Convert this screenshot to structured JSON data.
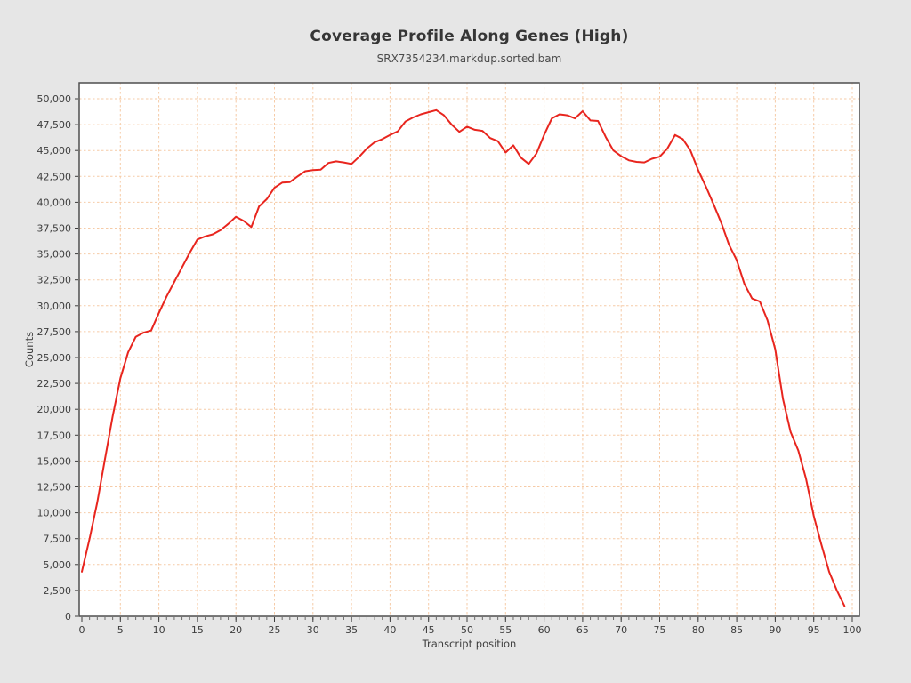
{
  "header": {
    "title": "Coverage Profile Along Genes (High)",
    "subtitle": "SRX7354234.markdup.sorted.bam"
  },
  "chart_data": {
    "type": "line",
    "title": "Coverage Profile Along Genes (High)",
    "subtitle": "SRX7354234.markdup.sorted.bam",
    "xlabel": "Transcript position",
    "ylabel": "Counts",
    "xlim": [
      -0.35,
      100.9
    ],
    "ylim": [
      0,
      51500
    ],
    "grid": true,
    "legend_position": "none",
    "x_ticks": [
      0,
      5,
      10,
      15,
      20,
      25,
      30,
      35,
      40,
      45,
      50,
      55,
      60,
      65,
      70,
      75,
      80,
      85,
      90,
      95,
      100
    ],
    "x_tick_labels": [
      "0",
      "5",
      "10",
      "15",
      "20",
      "25",
      "30",
      "35",
      "40",
      "45",
      "50",
      "55",
      "60",
      "65",
      "70",
      "75",
      "80",
      "85",
      "90",
      "95",
      "100"
    ],
    "x_minor_tick_step": 1,
    "y_ticks": [
      0,
      2500,
      5000,
      7500,
      10000,
      12500,
      15000,
      17500,
      20000,
      22500,
      25000,
      27500,
      30000,
      32500,
      35000,
      37500,
      40000,
      42500,
      45000,
      47500,
      50000
    ],
    "y_tick_labels": [
      "0",
      "2,500",
      "5,000",
      "7,500",
      "10,000",
      "12,500",
      "15,000",
      "17,500",
      "20,000",
      "22,500",
      "25,000",
      "27,500",
      "30,000",
      "32,500",
      "35,000",
      "37,500",
      "40,000",
      "42,500",
      "45,000",
      "47,500",
      "50,000"
    ],
    "series": [
      {
        "name": "SRX7354234.markdup.sorted.bam",
        "x_start": 0,
        "x_step": 1,
        "values": [
          4300,
          7500,
          11000,
          15200,
          19300,
          23000,
          25500,
          27000,
          27400,
          27600,
          29300,
          30900,
          32300,
          33700,
          35100,
          36400,
          36700,
          36900,
          37300,
          37900,
          38600,
          38200,
          37600,
          39600,
          40300,
          41400,
          41900,
          41950,
          42500,
          43000,
          43100,
          43150,
          43800,
          43950,
          43850,
          43700,
          44400,
          45200,
          45800,
          46100,
          46500,
          46850,
          47800,
          48200,
          48500,
          48700,
          48900,
          48400,
          47500,
          46800,
          47300,
          47000,
          46900,
          46200,
          45900,
          44800,
          45500,
          44300,
          43700,
          44700,
          46500,
          48100,
          48500,
          48400,
          48100,
          48800,
          47900,
          47850,
          46300,
          45000,
          44450,
          44050,
          43900,
          43850,
          44200,
          44400,
          45200,
          46500,
          46100,
          45000,
          43100,
          41500,
          39800,
          38000,
          35900,
          34400,
          32100,
          30700,
          30400,
          28600,
          25800,
          21000,
          17800,
          16000,
          13300,
          9700,
          6900,
          4300,
          2500,
          1000
        ]
      }
    ],
    "colors": {
      "line": "#e8251e",
      "grid": "#f6cba7",
      "plot_background": "#ffffff",
      "page_background": "#e6e6e6",
      "axis": "#4f4f4f"
    }
  }
}
